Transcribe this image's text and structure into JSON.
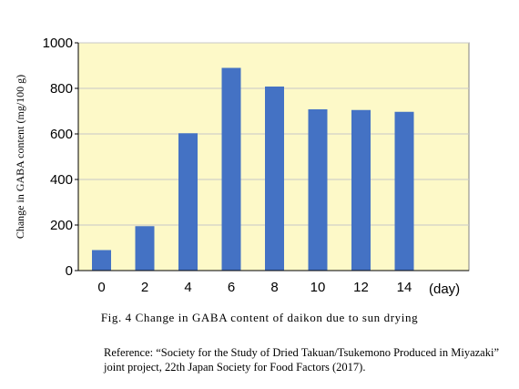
{
  "chart_data": {
    "type": "bar",
    "categories": [
      "0",
      "2",
      "4",
      "6",
      "8",
      "10",
      "12",
      "14"
    ],
    "values": [
      90,
      195,
      603,
      890,
      808,
      708,
      705,
      697
    ],
    "x_unit_label": "(day)",
    "ylabel": "Change in GABA content (mg/100 g)",
    "ylim": [
      0,
      1000
    ],
    "yticks": [
      "0",
      "200",
      "400",
      "600",
      "800",
      "1000"
    ],
    "ytick_values": [
      0,
      200,
      400,
      600,
      800,
      1000
    ],
    "grid": true,
    "plot_background": "#fdf9c8",
    "bar_color": "#4472c4"
  },
  "caption": "Fig. 4 Change in GABA content of daikon due to sun drying",
  "reference": "Reference: “Society for the Study of Dried Takuan/Tsukemono Produced in Miyazaki” joint project, 22th Japan Society for Food Factors (2017)."
}
